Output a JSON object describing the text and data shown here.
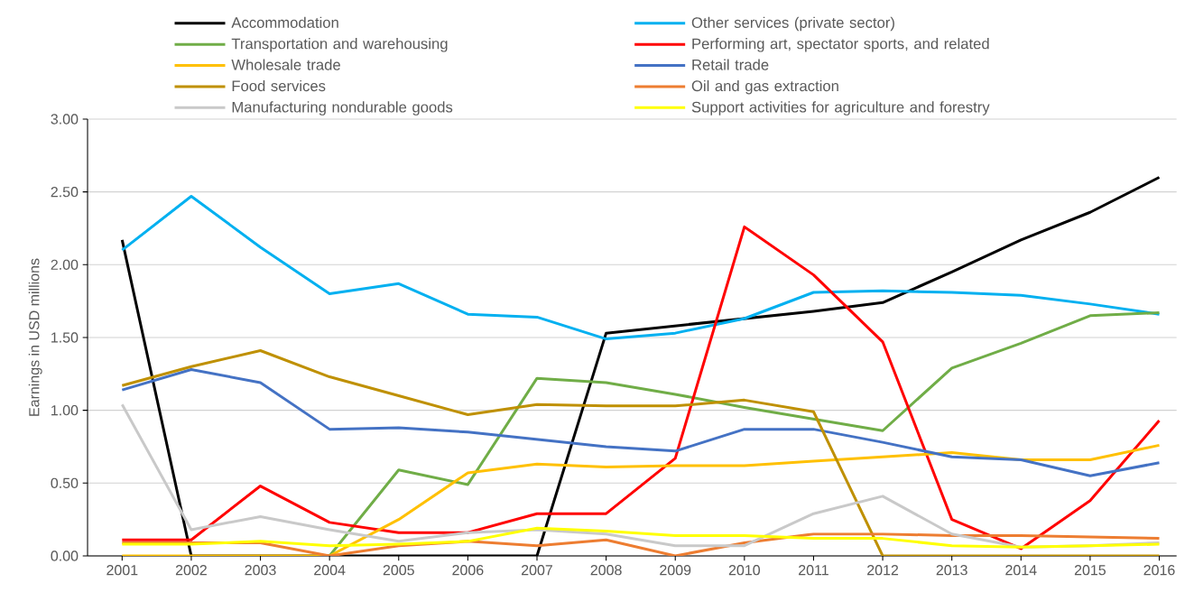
{
  "chart_data": {
    "type": "line",
    "ylabel": "Earnings in USD millions",
    "categories": [
      "2001",
      "2002",
      "2003",
      "2004",
      "2005",
      "2006",
      "2007",
      "2008",
      "2009",
      "2010",
      "2011",
      "2012",
      "2013",
      "2014",
      "2015",
      "2016"
    ],
    "ylim": [
      0,
      3
    ],
    "yticks": [
      {
        "value": 0,
        "label": "0.00"
      },
      {
        "value": 0.5,
        "label": "0.50"
      },
      {
        "value": 1,
        "label": "1.00"
      },
      {
        "value": 1.5,
        "label": "1.50"
      },
      {
        "value": 2,
        "label": "2.00"
      },
      {
        "value": 2.5,
        "label": "2.50"
      },
      {
        "value": 3,
        "label": "3.00"
      }
    ],
    "grid": "y",
    "legend": "top",
    "series": [
      {
        "name": "Accommodation",
        "color": "#000000",
        "values": [
          2.17,
          0,
          0,
          0,
          0,
          0,
          0,
          1.53,
          1.58,
          1.63,
          1.68,
          1.74,
          1.95,
          2.17,
          2.36,
          2.6
        ]
      },
      {
        "name": "Other services (private sector)",
        "color": "#00b0f0",
        "values": [
          2.1,
          2.47,
          2.12,
          1.8,
          1.87,
          1.66,
          1.64,
          1.49,
          1.53,
          1.63,
          1.81,
          1.82,
          1.81,
          1.79,
          1.73,
          1.66
        ]
      },
      {
        "name": "Transportation and warehousing",
        "color": "#70ad47",
        "values": [
          null,
          null,
          null,
          0,
          0.59,
          0.49,
          1.22,
          1.19,
          1.11,
          1.02,
          0.94,
          0.86,
          1.29,
          1.46,
          1.65,
          1.67
        ]
      },
      {
        "name": "Performing art, spectator sports, and related",
        "color": "#ff0000",
        "values": [
          0.11,
          0.11,
          0.48,
          0.23,
          0.16,
          0.16,
          0.29,
          0.29,
          0.67,
          2.26,
          1.93,
          1.47,
          0.25,
          0.05,
          0.38,
          0.93
        ]
      },
      {
        "name": "Wholesale trade",
        "color": "#ffc000",
        "values": [
          0,
          0,
          0,
          0,
          0.25,
          0.57,
          0.63,
          0.61,
          0.62,
          0.62,
          0.65,
          0.68,
          0.71,
          0.66,
          0.66,
          0.76
        ]
      },
      {
        "name": "Retail trade",
        "color": "#4472c4",
        "values": [
          1.14,
          1.28,
          1.19,
          0.87,
          0.88,
          0.85,
          0.8,
          0.75,
          0.72,
          0.87,
          0.87,
          0.78,
          0.68,
          0.66,
          0.55,
          0.64
        ]
      },
      {
        "name": "Food services",
        "color": "#bf9000",
        "values": [
          1.17,
          1.3,
          1.41,
          1.23,
          1.1,
          0.97,
          1.04,
          1.03,
          1.03,
          1.07,
          0.99,
          0,
          0,
          0,
          0,
          0
        ]
      },
      {
        "name": "Oil and gas extraction",
        "color": "#ed7d31",
        "values": [
          0.09,
          0.09,
          0.09,
          0,
          0.07,
          0.1,
          0.07,
          0.11,
          0,
          0.09,
          0.15,
          0.15,
          0.14,
          0.14,
          0.13,
          0.12
        ]
      },
      {
        "name": "Manufacturing nondurable goods",
        "color": "#c9c9c9",
        "values": [
          1.04,
          0.18,
          0.27,
          0.18,
          0.1,
          0.16,
          0.18,
          0.15,
          0.07,
          0.07,
          0.29,
          0.41,
          0.15,
          0.06,
          0.07,
          0.09
        ]
      },
      {
        "name": "Support activities for agriculture and forestry",
        "color": "#ffff00",
        "values": [
          0.08,
          0.08,
          0.1,
          0.07,
          0.08,
          0.1,
          0.19,
          0.17,
          0.14,
          0.14,
          0.12,
          0.12,
          0.07,
          0.06,
          0.07,
          0.08
        ]
      }
    ]
  }
}
